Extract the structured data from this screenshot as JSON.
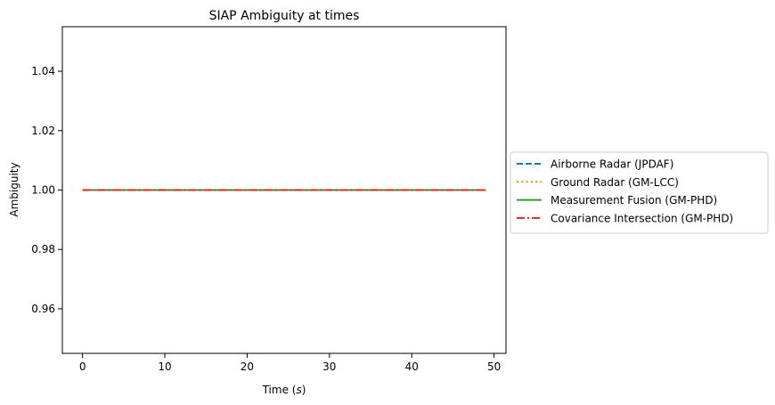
{
  "chart_data": {
    "type": "line",
    "title": "SIAP Ambiguity at times",
    "xlabel": "Time (s)",
    "ylabel": "Ambiguity",
    "xlim": [
      -2.45,
      51.45
    ],
    "ylim": [
      0.945,
      1.055
    ],
    "x_ticks": [
      0,
      10,
      20,
      30,
      40,
      50
    ],
    "y_ticks": [
      0.96,
      0.98,
      1.0,
      1.02,
      1.04
    ],
    "y_tick_labels": [
      "0.96",
      "0.98",
      "1.00",
      "1.02",
      "1.04"
    ],
    "grid": false,
    "legend_position": "outside right",
    "x": [
      0,
      49
    ],
    "series": [
      {
        "name": "Airborne Radar (JPDAF)",
        "color": "#1f77b4",
        "style": "dashed",
        "values": [
          1.0,
          1.0
        ]
      },
      {
        "name": "Ground Radar (GM-LCC)",
        "color": "#ff7f0e",
        "style": "dotted",
        "values": [
          1.0,
          1.0
        ]
      },
      {
        "name": "Measurement Fusion (GM-PHD)",
        "color": "#2ca02c",
        "style": "solid",
        "values": [
          1.0,
          1.0
        ]
      },
      {
        "name": "Covariance Intersection (GM-PHD)",
        "color": "#d62728",
        "style": "dashdot",
        "values": [
          1.0,
          1.0
        ]
      }
    ]
  }
}
